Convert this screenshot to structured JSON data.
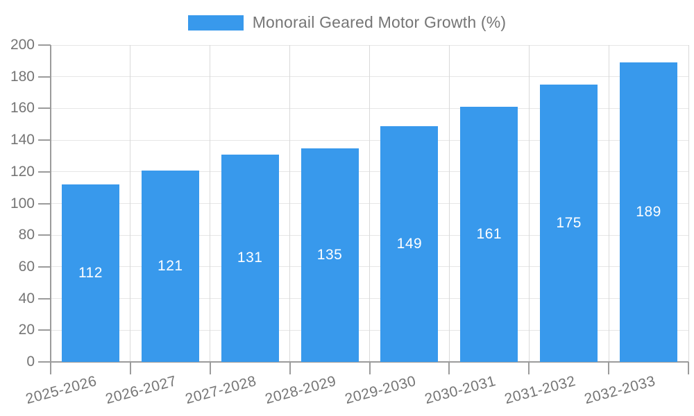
{
  "chart_data": {
    "type": "bar",
    "title": "",
    "legend_position": "top",
    "grid": true,
    "categories": [
      "2025-2026",
      "2026-2027",
      "2027-2028",
      "2028-2029",
      "2029-2030",
      "2030-2031",
      "2031-2032",
      "2032-2033"
    ],
    "series": [
      {
        "name": "Monorail Geared Motor Growth (%)",
        "values": [
          112,
          121,
          131,
          135,
          149,
          161,
          175,
          189
        ]
      }
    ],
    "value_labels": [
      "112",
      "121",
      "131",
      "135",
      "149",
      "161",
      "175",
      "189"
    ],
    "yticks": [
      0,
      20,
      40,
      60,
      80,
      100,
      120,
      140,
      160,
      180,
      200
    ],
    "ylim": [
      0,
      200
    ],
    "ytick_step": 20,
    "xlabel": "",
    "ylabel": "",
    "colors": {
      "bar": "#3899EC",
      "axis": "#9b9b9b",
      "grid_horizontal": "#e6e6e6",
      "grid_vertical": "#d9d9d9",
      "tick_text": "#757575",
      "value_label_text": "#ffffff",
      "background": "#ffffff"
    }
  }
}
